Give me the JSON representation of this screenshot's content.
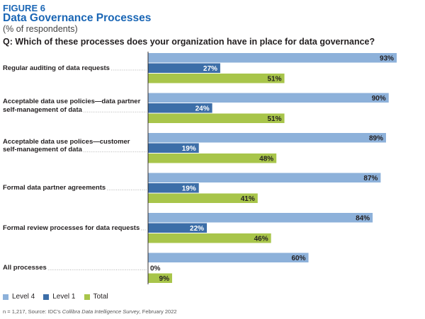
{
  "figure_label": "FIGURE 6",
  "title": "Data Governance Processes",
  "subtitle": "(% of respondents)",
  "question": "Q: Which of these processes does your organization have in place for data governance?",
  "colors": {
    "level4": "#8db1da",
    "level1": "#3c6ea8",
    "total": "#a8c54a",
    "dots": "#999999"
  },
  "chart_data": {
    "type": "bar",
    "orientation": "horizontal",
    "title": "Data Governance Processes",
    "subtitle": "(% of respondents)",
    "xlim": [
      0,
      100
    ],
    "unit": "%",
    "categories": [
      [
        "Regular auditing of data requests"
      ],
      [
        "Acceptable data use policies—data partner",
        "self-management of data"
      ],
      [
        "Acceptable data use polices—customer",
        "self-management of data"
      ],
      [
        "Formal data partner agreements"
      ],
      [
        "Formal review processes for data requests"
      ],
      [
        "All processes"
      ]
    ],
    "series": [
      {
        "name": "Level 4",
        "values": [
          93,
          90,
          89,
          87,
          84,
          60
        ]
      },
      {
        "name": "Level 1",
        "values": [
          27,
          24,
          19,
          19,
          22,
          0
        ]
      },
      {
        "name": "Total",
        "values": [
          51,
          51,
          48,
          41,
          46,
          9
        ]
      }
    ],
    "data_labels": [
      [
        "93%",
        "27%",
        "51%"
      ],
      [
        "90%",
        "24%",
        "51%"
      ],
      [
        "89%",
        "19%",
        "48%"
      ],
      [
        "87%",
        "19%",
        "41%"
      ],
      [
        "84%",
        "22%",
        "46%"
      ],
      [
        "60%",
        "0%",
        "9%"
      ]
    ],
    "legend": [
      "Level 4",
      "Level 1",
      "Total"
    ]
  },
  "source": {
    "prefix": "n = 1,217, Source: IDC's ",
    "survey": "Collibra Data Intelligence Survey",
    "suffix": ", February 2022"
  }
}
